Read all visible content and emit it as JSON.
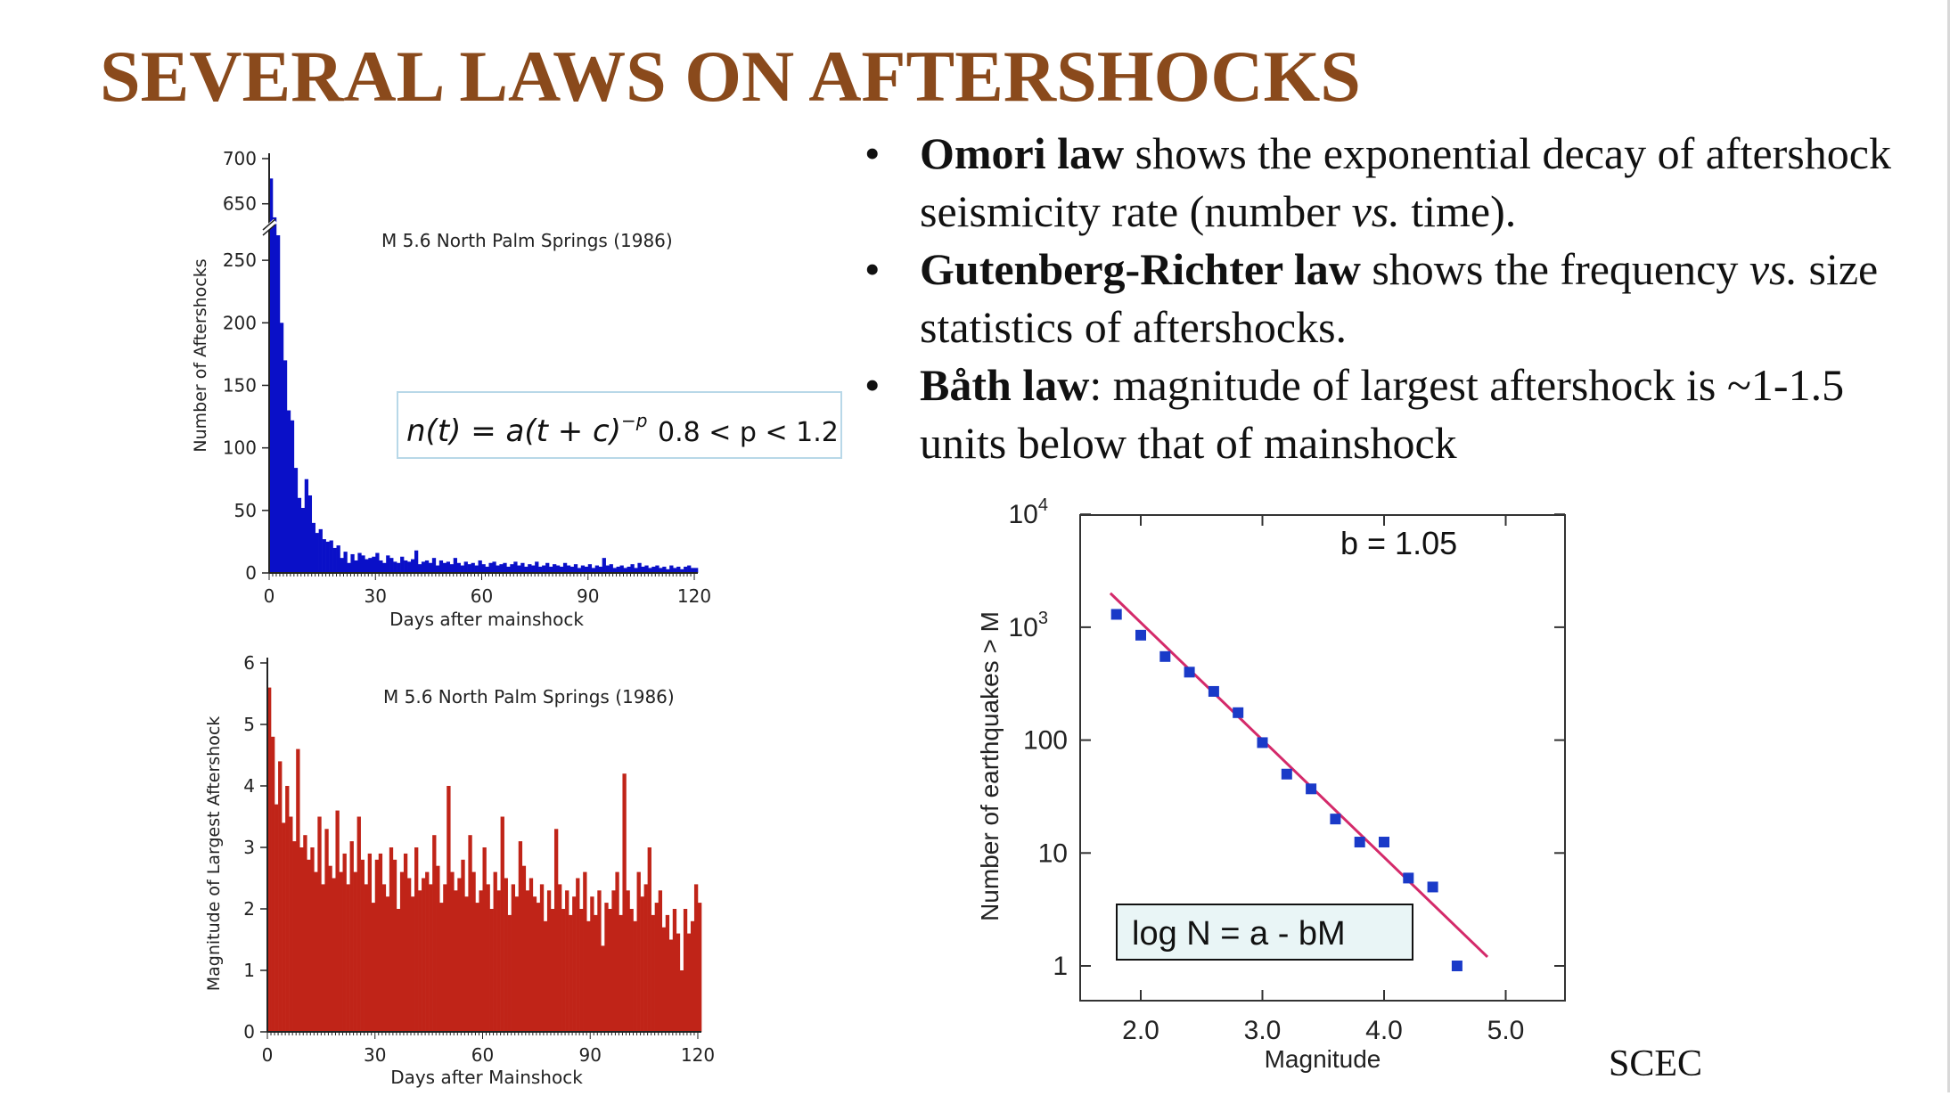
{
  "slide": {
    "title": "SEVERAL LAWS ON AFTERSHOCKS",
    "title_color": "#8a4a1c",
    "source": "SCEC"
  },
  "bullets": [
    {
      "bold": "Omori law",
      "rest_a": " shows the exponential decay of aftershock seismicity rate (number ",
      "italic": "vs.",
      "rest_b": " time)."
    },
    {
      "bold": "Gutenberg-Richter law",
      "rest_a": " shows the frequency ",
      "italic": "vs.",
      "rest_b": " size statistics of aftershocks."
    },
    {
      "bold": "Båth law",
      "rest_a": ": magnitude of largest aftershock is ~1-1.5 units below that of mainshock",
      "italic": "",
      "rest_b": ""
    }
  ],
  "chart_data": [
    {
      "type": "bar",
      "annotation": "M 5.6  North Palm Springs  (1986)",
      "xlabel": "Days after mainshock",
      "ylabel": "Number of Aftershocks",
      "xlim": [
        0,
        121
      ],
      "xticks": [
        0,
        30,
        60,
        90,
        120
      ],
      "yticks": [
        "0",
        "50",
        "100",
        "150",
        "200",
        "250",
        "650",
        "700"
      ],
      "axis_break": {
        "between": [
          280,
          630
        ]
      },
      "bar_color": "#0a10c8",
      "formula": {
        "lhs": "n(t) = a(t + c)",
        "exponent": "−p",
        "condition": "0.8 < p < 1.2"
      },
      "x": [
        0.5,
        1.5,
        2.5,
        3.5,
        4.5,
        5.5,
        6.5,
        7.5,
        8.5,
        9.5,
        10.5,
        11.5,
        12.5,
        13.5,
        14.5,
        15.5,
        16.5,
        17.5,
        18.5,
        19.5,
        20.5,
        21.5,
        22.5,
        23.5,
        24.5,
        25.5,
        26.5,
        27.5,
        28.5,
        29.5,
        30.5,
        31.5,
        32.5,
        33.5,
        34.5,
        35.5,
        36.5,
        37.5,
        38.5,
        39.5,
        40.5,
        41.5,
        42.5,
        43.5,
        44.5,
        45.5,
        46.5,
        47.5,
        48.5,
        49.5,
        50.5,
        51.5,
        52.5,
        53.5,
        54.5,
        55.5,
        56.5,
        57.5,
        58.5,
        59.5,
        60.5,
        61.5,
        62.5,
        63.5,
        64.5,
        65.5,
        66.5,
        67.5,
        68.5,
        69.5,
        70.5,
        71.5,
        72.5,
        73.5,
        74.5,
        75.5,
        76.5,
        77.5,
        78.5,
        79.5,
        80.5,
        81.5,
        82.5,
        83.5,
        84.5,
        85.5,
        86.5,
        87.5,
        88.5,
        89.5,
        90.5,
        91.5,
        92.5,
        93.5,
        94.5,
        95.5,
        96.5,
        97.5,
        98.5,
        99.5,
        100.5,
        101.5,
        102.5,
        103.5,
        104.5,
        105.5,
        106.5,
        107.5,
        108.5,
        109.5,
        110.5,
        111.5,
        112.5,
        113.5,
        114.5,
        115.5,
        116.5,
        117.5,
        118.5,
        119.5,
        120.5
      ],
      "values": [
        678,
        635,
        270,
        200,
        170,
        130,
        122,
        84,
        60,
        52,
        75,
        62,
        40,
        32,
        35,
        27,
        25,
        26,
        20,
        22,
        12,
        17,
        8,
        15,
        10,
        16,
        14,
        11,
        12,
        13,
        16,
        10,
        8,
        14,
        12,
        9,
        8,
        13,
        10,
        9,
        11,
        18,
        7,
        9,
        10,
        8,
        12,
        6,
        10,
        8,
        9,
        7,
        12,
        8,
        6,
        9,
        7,
        8,
        6,
        10,
        7,
        5,
        8,
        9,
        6,
        7,
        8,
        5,
        7,
        9,
        6,
        8,
        5,
        7,
        6,
        9,
        5,
        6,
        8,
        5,
        7,
        6,
        5,
        8,
        6,
        5,
        7,
        4,
        6,
        5,
        7,
        4,
        6,
        5,
        12,
        6,
        7,
        4,
        5,
        6,
        4,
        5,
        7,
        4,
        8,
        5,
        6,
        4,
        5,
        6,
        4,
        5,
        3,
        6,
        4,
        5,
        3,
        5,
        6,
        4,
        4
      ]
    },
    {
      "type": "bar",
      "annotation": "M 5.6  North Palm Springs  (1986)",
      "xlabel": "Days after Mainshock",
      "ylabel": "Magnitude of Largest Aftershock",
      "xlim": [
        0,
        121
      ],
      "ylim": [
        0,
        6
      ],
      "xticks": [
        0,
        30,
        60,
        90,
        120
      ],
      "yticks": [
        0,
        1,
        2,
        3,
        4,
        5,
        6
      ],
      "bar_color": "#c02418",
      "x": [
        0.5,
        1.5,
        2.5,
        3.5,
        4.5,
        5.5,
        6.5,
        7.5,
        8.5,
        9.5,
        10.5,
        11.5,
        12.5,
        13.5,
        14.5,
        15.5,
        16.5,
        17.5,
        18.5,
        19.5,
        20.5,
        21.5,
        22.5,
        23.5,
        24.5,
        25.5,
        26.5,
        27.5,
        28.5,
        29.5,
        30.5,
        31.5,
        32.5,
        33.5,
        34.5,
        35.5,
        36.5,
        37.5,
        38.5,
        39.5,
        40.5,
        41.5,
        42.5,
        43.5,
        44.5,
        45.5,
        46.5,
        47.5,
        48.5,
        49.5,
        50.5,
        51.5,
        52.5,
        53.5,
        54.5,
        55.5,
        56.5,
        57.5,
        58.5,
        59.5,
        60.5,
        61.5,
        62.5,
        63.5,
        64.5,
        65.5,
        66.5,
        67.5,
        68.5,
        69.5,
        70.5,
        71.5,
        72.5,
        73.5,
        74.5,
        75.5,
        76.5,
        77.5,
        78.5,
        79.5,
        80.5,
        81.5,
        82.5,
        83.5,
        84.5,
        85.5,
        86.5,
        87.5,
        88.5,
        89.5,
        90.5,
        91.5,
        92.5,
        93.5,
        94.5,
        95.5,
        96.5,
        97.5,
        98.5,
        99.5,
        100.5,
        101.5,
        102.5,
        103.5,
        104.5,
        105.5,
        106.5,
        107.5,
        108.5,
        109.5,
        110.5,
        111.5,
        112.5,
        113.5,
        114.5,
        115.5,
        116.5,
        117.5,
        118.5,
        119.5,
        120.5
      ],
      "values": [
        5.6,
        4.8,
        3.7,
        4.4,
        3.4,
        4.0,
        3.5,
        3.1,
        4.6,
        3.0,
        3.2,
        2.8,
        3.0,
        2.6,
        3.5,
        2.4,
        3.3,
        2.7,
        2.5,
        3.6,
        2.6,
        2.9,
        2.4,
        3.1,
        2.6,
        3.5,
        2.8,
        2.4,
        2.9,
        2.1,
        2.8,
        2.9,
        2.4,
        2.2,
        3.0,
        2.8,
        2.0,
        2.6,
        2.9,
        2.5,
        2.2,
        3.0,
        2.3,
        2.5,
        2.6,
        2.4,
        3.2,
        2.7,
        2.1,
        2.4,
        4.0,
        2.6,
        2.3,
        2.5,
        2.8,
        2.2,
        3.2,
        2.6,
        2.1,
        2.3,
        3.0,
        2.4,
        2.0,
        2.6,
        2.3,
        3.5,
        2.5,
        1.9,
        2.4,
        2.2,
        3.1,
        2.7,
        2.3,
        2.5,
        2.2,
        2.1,
        2.4,
        1.8,
        2.3,
        2.0,
        3.3,
        2.4,
        2.0,
        2.3,
        1.9,
        2.2,
        2.5,
        2.0,
        2.6,
        1.8,
        2.2,
        1.9,
        2.3,
        1.4,
        2.1,
        2.0,
        2.3,
        2.6,
        1.9,
        4.2,
        2.3,
        2.0,
        1.8,
        2.6,
        2.2,
        2.4,
        3.0,
        1.9,
        2.1,
        2.3,
        1.7,
        1.9,
        1.5,
        2.0,
        1.6,
        1.0,
        2.0,
        1.6,
        1.8,
        2.4,
        2.1
      ]
    },
    {
      "type": "scatter",
      "xlabel": "Magnitude",
      "ylabel": "Number of earthquakes > M",
      "xlim": [
        1.5,
        5.5
      ],
      "ylim": [
        0.3,
        10000
      ],
      "yscale": "log",
      "xticks": [
        "2.0",
        "3.0",
        "4.0",
        "5.0"
      ],
      "yticks": [
        {
          "value": 1,
          "base": "1",
          "exp": ""
        },
        {
          "value": 10,
          "base": "10",
          "exp": ""
        },
        {
          "value": 100,
          "base": "100",
          "exp": ""
        },
        {
          "value": 1000,
          "base": "10",
          "exp": "3"
        },
        {
          "value": 10000,
          "base": "10",
          "exp": "4"
        }
      ],
      "annotation": "b = 1.05",
      "formula_box": "log N = a - bM",
      "point_color": "#1a3ac8",
      "line_color": "#d42a6a",
      "x": [
        1.8,
        2.0,
        2.2,
        2.4,
        2.6,
        2.8,
        3.0,
        3.2,
        3.4,
        3.6,
        3.8,
        4.0,
        4.2,
        4.4,
        4.6
      ],
      "y": [
        1300,
        850,
        550,
        400,
        270,
        175,
        95,
        50,
        37,
        20,
        12.5,
        12.5,
        6,
        5,
        1
      ],
      "fit_line": {
        "x": [
          1.75,
          4.85
        ],
        "y": [
          2000,
          1.2
        ]
      }
    }
  ]
}
